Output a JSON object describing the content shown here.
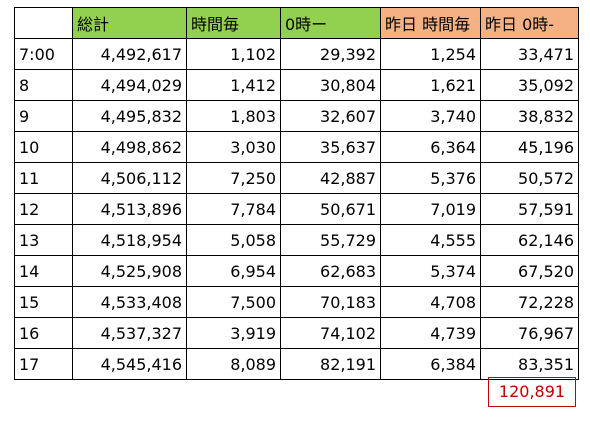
{
  "headers": [
    "",
    "総計",
    "時間毎",
    "0時ー",
    "昨日 時間毎",
    "昨日 0時-"
  ],
  "rows": [
    {
      "time": "7:00",
      "total": "4,492,617",
      "hourly": "1,102",
      "since0": "29,392",
      "yday_hourly": "1,254",
      "yday_since0": "33,471"
    },
    {
      "time": "8",
      "total": "4,494,029",
      "hourly": "1,412",
      "since0": "30,804",
      "yday_hourly": "1,621",
      "yday_since0": "35,092"
    },
    {
      "time": "9",
      "total": "4,495,832",
      "hourly": "1,803",
      "since0": "32,607",
      "yday_hourly": "3,740",
      "yday_since0": "38,832"
    },
    {
      "time": "10",
      "total": "4,498,862",
      "hourly": "3,030",
      "since0": "35,637",
      "yday_hourly": "6,364",
      "yday_since0": "45,196"
    },
    {
      "time": "11",
      "total": "4,506,112",
      "hourly": "7,250",
      "since0": "42,887",
      "yday_hourly": "5,376",
      "yday_since0": "50,572"
    },
    {
      "time": "12",
      "total": "4,513,896",
      "hourly": "7,784",
      "since0": "50,671",
      "yday_hourly": "7,019",
      "yday_since0": "57,591"
    },
    {
      "time": "13",
      "total": "4,518,954",
      "hourly": "5,058",
      "since0": "55,729",
      "yday_hourly": "4,555",
      "yday_since0": "62,146"
    },
    {
      "time": "14",
      "total": "4,525,908",
      "hourly": "6,954",
      "since0": "62,683",
      "yday_hourly": "5,374",
      "yday_since0": "67,520"
    },
    {
      "time": "15",
      "total": "4,533,408",
      "hourly": "7,500",
      "since0": "70,183",
      "yday_hourly": "4,708",
      "yday_since0": "72,228"
    },
    {
      "time": "16",
      "total": "4,537,327",
      "hourly": "3,919",
      "since0": "74,102",
      "yday_hourly": "4,739",
      "yday_since0": "76,967"
    },
    {
      "time": "17",
      "total": "4,545,416",
      "hourly": "8,089",
      "since0": "82,191",
      "yday_hourly": "6,384",
      "yday_since0": "83,351"
    }
  ],
  "total_box": "120,891",
  "colors": {
    "header_green": "#92d050",
    "header_orange": "#f4b183",
    "total_red": "#c00000"
  }
}
